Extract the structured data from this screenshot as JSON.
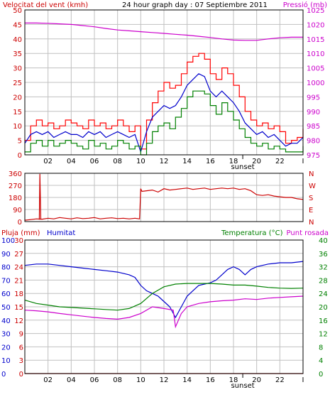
{
  "colors": {
    "background": "#ffffff",
    "frame": "#000000",
    "grid": "#c0c0c0",
    "wind_gust": "#ff0000",
    "wind_avg": "#0000cc",
    "wind_min": "#008000",
    "pressure": "#cc00cc",
    "direction": "#cc0000",
    "rain": "#cc0000",
    "humidity": "#0000cc",
    "temperature": "#008000",
    "dewpoint": "#cc00cc",
    "label_red": "#cc0000",
    "label_blue": "#0000cc",
    "label_green": "#008000",
    "label_magenta": "#cc00cc"
  },
  "chart_data": [
    {
      "type": "line",
      "title": "24 hour graph day : 07 Septiembre 2011",
      "left_axis_label": "Velocitat del vent (kmh)",
      "right_axis_label": "Pressió (mb)",
      "x_tick_labels": [
        "02",
        "04",
        "06",
        "08",
        "10",
        "12",
        "14",
        "16",
        "18",
        "20",
        "22",
        "I"
      ],
      "sunset_label": "sunset",
      "sunset_hour": 18.8,
      "xlim": [
        0,
        24
      ],
      "ylim_left": [
        0,
        50
      ],
      "ylim_right": [
        975,
        1025
      ],
      "yticks_left": [
        "0",
        "5",
        "10",
        "15",
        "20",
        "25",
        "30",
        "35",
        "40",
        "45",
        "50"
      ],
      "yticks_right": [
        "975",
        "980",
        "985",
        "990",
        "995",
        "1000",
        "1005",
        "1010",
        "1015",
        "1020",
        "1025"
      ],
      "series": [
        {
          "key": "gust",
          "axis": "left",
          "x": [
            0,
            0.5,
            1,
            1.5,
            2,
            2.5,
            3,
            3.5,
            4,
            4.5,
            5,
            5.5,
            6,
            6.5,
            7,
            7.5,
            8,
            8.5,
            9,
            9.5,
            10,
            10.5,
            11,
            11.5,
            12,
            12.5,
            13,
            13.5,
            14,
            14.5,
            15,
            15.5,
            16,
            16.5,
            17,
            17.5,
            18,
            18.5,
            19,
            19.5,
            20,
            20.5,
            21,
            21.5,
            22,
            22.5,
            23,
            23.5,
            24
          ],
          "values": [
            5,
            10,
            12,
            10,
            11,
            9,
            10,
            12,
            11,
            10,
            9,
            12,
            10,
            11,
            9,
            10,
            12,
            10,
            8,
            10,
            2,
            12,
            18,
            22,
            25,
            23,
            24,
            28,
            32,
            34,
            35,
            33,
            28,
            26,
            30,
            28,
            24,
            20,
            15,
            12,
            10,
            11,
            9,
            10,
            8,
            4,
            5,
            6,
            9
          ]
        },
        {
          "key": "average",
          "axis": "left",
          "x": [
            0,
            0.5,
            1,
            1.5,
            2,
            2.5,
            3,
            3.5,
            4,
            4.5,
            5,
            5.5,
            6,
            6.5,
            7,
            7.5,
            8,
            8.5,
            9,
            9.5,
            10,
            10.5,
            11,
            11.5,
            12,
            12.5,
            13,
            13.5,
            14,
            14.5,
            15,
            15.5,
            16,
            16.5,
            17,
            17.5,
            18,
            18.5,
            19,
            19.5,
            20,
            20.5,
            21,
            21.5,
            22,
            22.5,
            23,
            23.5,
            24
          ],
          "values": [
            4,
            7,
            8,
            7,
            8,
            6,
            7,
            8,
            7,
            7,
            6,
            8,
            7,
            8,
            6,
            7,
            8,
            7,
            6,
            7,
            1,
            8,
            13,
            15,
            17,
            16,
            17,
            20,
            24,
            26,
            28,
            27,
            22,
            20,
            22,
            20,
            18,
            15,
            11,
            9,
            7,
            8,
            6,
            7,
            5,
            3,
            4,
            4,
            6
          ]
        },
        {
          "key": "minimum",
          "axis": "left",
          "x": [
            0,
            0.5,
            1,
            1.5,
            2,
            2.5,
            3,
            3.5,
            4,
            4.5,
            5,
            5.5,
            6,
            6.5,
            7,
            7.5,
            8,
            8.5,
            9,
            9.5,
            10,
            10.5,
            11,
            11.5,
            12,
            12.5,
            13,
            13.5,
            14,
            14.5,
            15,
            15.5,
            16,
            16.5,
            17,
            17.5,
            18,
            18.5,
            19,
            19.5,
            20,
            20.5,
            21,
            21.5,
            22,
            22.5,
            23,
            23.5,
            24
          ],
          "values": [
            1,
            4,
            5,
            3,
            5,
            3,
            4,
            5,
            4,
            3,
            2,
            5,
            3,
            4,
            2,
            3,
            5,
            4,
            2,
            3,
            0,
            4,
            8,
            10,
            11,
            9,
            13,
            16,
            20,
            22,
            22,
            21,
            17,
            14,
            18,
            15,
            12,
            9,
            6,
            4,
            3,
            4,
            2,
            3,
            2,
            1,
            1,
            1,
            3
          ]
        },
        {
          "key": "pressure",
          "axis": "right",
          "x": [
            0,
            1,
            2,
            3,
            4,
            5,
            6,
            7,
            8,
            9,
            10,
            11,
            12,
            13,
            14,
            15,
            16,
            17,
            18,
            19,
            20,
            21,
            22,
            23,
            24
          ],
          "values": [
            1020.5,
            1020.5,
            1020.4,
            1020.2,
            1020,
            1019.6,
            1019.2,
            1018.6,
            1018.1,
            1017.8,
            1017.5,
            1017.2,
            1016.9,
            1016.6,
            1016.3,
            1015.9,
            1015.5,
            1015,
            1014.6,
            1014.5,
            1014.5,
            1015,
            1015.4,
            1015.6,
            1015.6
          ]
        }
      ]
    },
    {
      "type": "line",
      "title": "",
      "left_axis_label": "",
      "right_axis_label": "",
      "xlim": [
        0,
        24
      ],
      "ylim": [
        0,
        360
      ],
      "yticks_left": [
        "360",
        "270",
        "180",
        "90",
        "0"
      ],
      "yticks_right": [
        "N",
        "W",
        "S",
        "E",
        "N"
      ],
      "series": [
        {
          "key": "direction",
          "x": [
            0,
            0.5,
            1,
            1.5,
            2,
            2.5,
            3,
            3.5,
            4,
            4.5,
            5,
            5.5,
            6,
            6.5,
            7,
            7.5,
            8,
            8.5,
            9,
            9.5,
            9.9,
            10,
            10.1,
            10.5,
            11,
            11.5,
            12,
            12.5,
            13,
            13.5,
            14,
            14.5,
            15,
            15.5,
            16,
            16.5,
            17,
            17.5,
            18,
            18.5,
            19,
            19.5,
            20,
            20.5,
            21,
            21.5,
            22,
            22.5,
            23,
            23.5,
            24
          ],
          "values": [
            10,
            15,
            20,
            18,
            25,
            20,
            30,
            25,
            20,
            28,
            22,
            25,
            30,
            20,
            25,
            28,
            22,
            25,
            20,
            25,
            20,
            245,
            225,
            230,
            235,
            220,
            245,
            235,
            240,
            245,
            250,
            240,
            245,
            250,
            240,
            245,
            250,
            245,
            250,
            240,
            245,
            230,
            200,
            195,
            200,
            190,
            185,
            180,
            180,
            170,
            165
          ]
        }
      ]
    },
    {
      "type": "line",
      "title": "",
      "left_axis_label": "Pluja (mm)",
      "left_axis_label_2": "Humitat",
      "right_axis_label": "Temperatura (°C)",
      "right_axis_label_2": "Punt rosada",
      "x_tick_labels": [
        "02",
        "04",
        "06",
        "08",
        "10",
        "12",
        "14",
        "16",
        "18",
        "20",
        "22",
        "I"
      ],
      "sunset_label": "sunset",
      "sunset_hour": 18.8,
      "xlim": [
        0,
        24
      ],
      "ylim_rain": [
        0,
        30
      ],
      "ylim_humidity": [
        0,
        100
      ],
      "ylim_temperature": [
        0,
        40
      ],
      "yticks_rain": [
        "30",
        "27",
        "24",
        "21",
        "18",
        "15",
        "12",
        "9",
        "6",
        "3",
        "0"
      ],
      "yticks_humidity": [
        "100",
        "90",
        "80",
        "70",
        "60",
        "50",
        "40",
        "30",
        "20",
        "10",
        "0"
      ],
      "yticks_temperature": [
        "40",
        "36",
        "32",
        "28",
        "24",
        "20",
        "16",
        "12",
        "8",
        "4",
        "0"
      ],
      "series": [
        {
          "key": "rain",
          "axis": "rain",
          "x": [
            0,
            24
          ],
          "values": [
            0,
            0
          ]
        },
        {
          "key": "humidity",
          "axis": "humidity",
          "x": [
            0,
            1,
            2,
            3,
            4,
            5,
            6,
            7,
            8,
            9,
            9.5,
            10,
            10.5,
            11,
            11.5,
            12,
            12.5,
            13,
            13.5,
            14,
            14.5,
            15,
            15.5,
            16,
            16.5,
            17,
            17.5,
            18,
            18.5,
            19,
            19.5,
            20,
            21,
            22,
            23,
            24
          ],
          "values": [
            81,
            82,
            82,
            81,
            80,
            79,
            78,
            77,
            76,
            74,
            72,
            66,
            62,
            60,
            58,
            54,
            50,
            42,
            50,
            58,
            62,
            66,
            67,
            68,
            70,
            74,
            78,
            80,
            78,
            74,
            78,
            80,
            82,
            83,
            83,
            84
          ]
        },
        {
          "key": "temperature",
          "axis": "temperature",
          "x": [
            0,
            1,
            2,
            3,
            4,
            5,
            6,
            7,
            8,
            9,
            10,
            11,
            12,
            13,
            14,
            15,
            16,
            17,
            18,
            19,
            20,
            21,
            22,
            23,
            24
          ],
          "values": [
            22,
            21,
            20.5,
            20,
            19.8,
            19.6,
            19.4,
            19.2,
            19,
            19.5,
            21,
            24,
            26,
            26.8,
            27,
            27,
            27,
            26.8,
            26.5,
            26.5,
            26.2,
            25.8,
            25.6,
            25.5,
            25.6
          ]
        },
        {
          "key": "dewpoint",
          "axis": "temperature",
          "x": [
            0,
            1,
            2,
            3,
            4,
            5,
            6,
            7,
            8,
            9,
            10,
            11,
            12,
            12.8,
            13,
            13.5,
            14,
            15,
            16,
            17,
            18,
            19,
            20,
            21,
            22,
            23,
            24
          ],
          "values": [
            19,
            18.8,
            18.5,
            18,
            17.6,
            17.2,
            16.8,
            16.5,
            16.3,
            16.8,
            18,
            20,
            19.5,
            19,
            14,
            18,
            20,
            21,
            21.5,
            21.8,
            22,
            22.4,
            22.2,
            22.6,
            22.8,
            23,
            23.2
          ]
        }
      ]
    }
  ]
}
